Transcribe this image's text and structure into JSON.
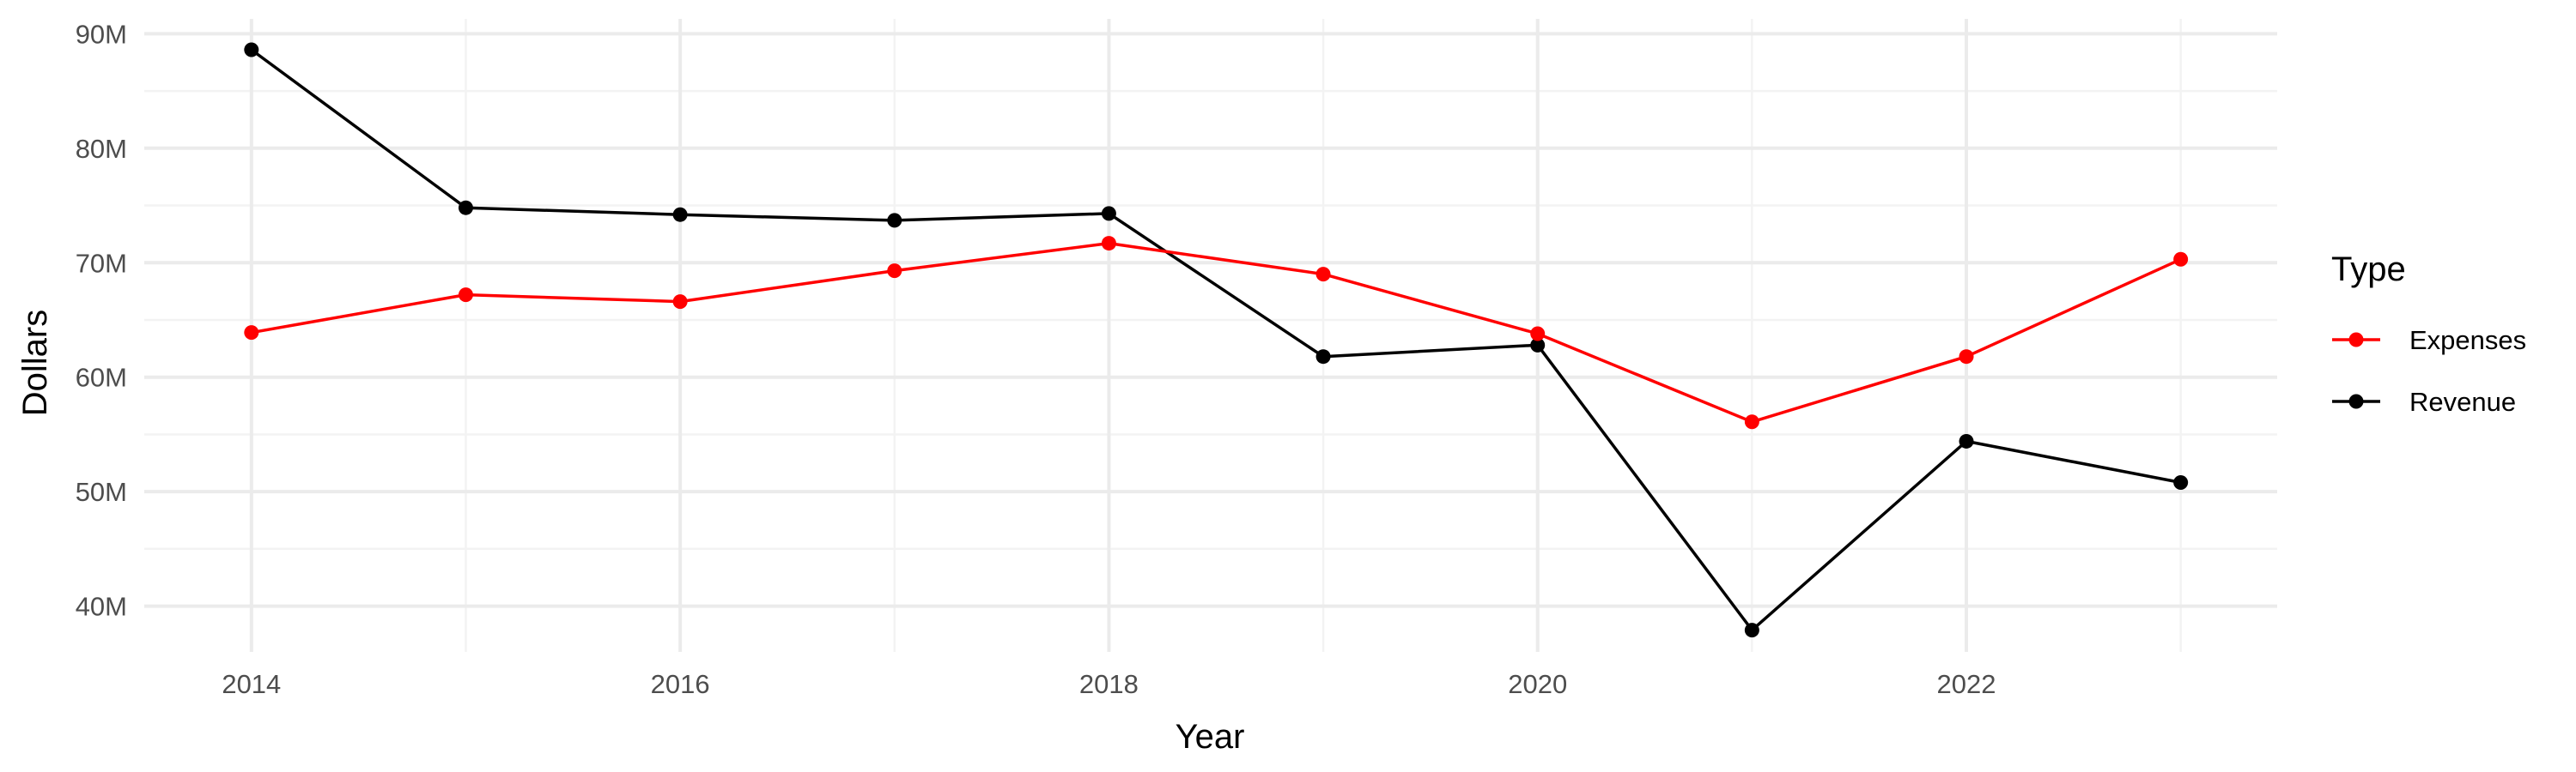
{
  "chart_data": {
    "type": "line",
    "xlabel": "Year",
    "ylabel": "Dollars",
    "xlim": [
      2013.5,
      2023.45
    ],
    "ylim": [
      36,
      91.3
    ],
    "x_ticks": [
      2014,
      2016,
      2018,
      2020,
      2022
    ],
    "x_tick_labels": [
      "2014",
      "2016",
      "2018",
      "2020",
      "2022"
    ],
    "y_ticks": [
      40,
      50,
      60,
      70,
      80,
      90
    ],
    "y_tick_labels": [
      "40M",
      "50M",
      "60M",
      "70M",
      "80M",
      "90M"
    ],
    "grid": true,
    "legend": {
      "title": "Type",
      "placement": "right"
    },
    "x": [
      2014,
      2015,
      2016,
      2017,
      2018,
      2019,
      2020,
      2021,
      2022,
      2023
    ],
    "series": [
      {
        "name": "Expenses",
        "color": "#ff0000",
        "values": [
          63.9,
          67.2,
          66.6,
          69.3,
          71.7,
          69.0,
          63.8,
          56.1,
          61.8,
          70.3
        ]
      },
      {
        "name": "Revenue",
        "color": "#000000",
        "values": [
          88.6,
          74.8,
          74.2,
          73.7,
          74.3,
          61.8,
          62.8,
          37.9,
          54.4,
          50.8
        ]
      }
    ]
  }
}
